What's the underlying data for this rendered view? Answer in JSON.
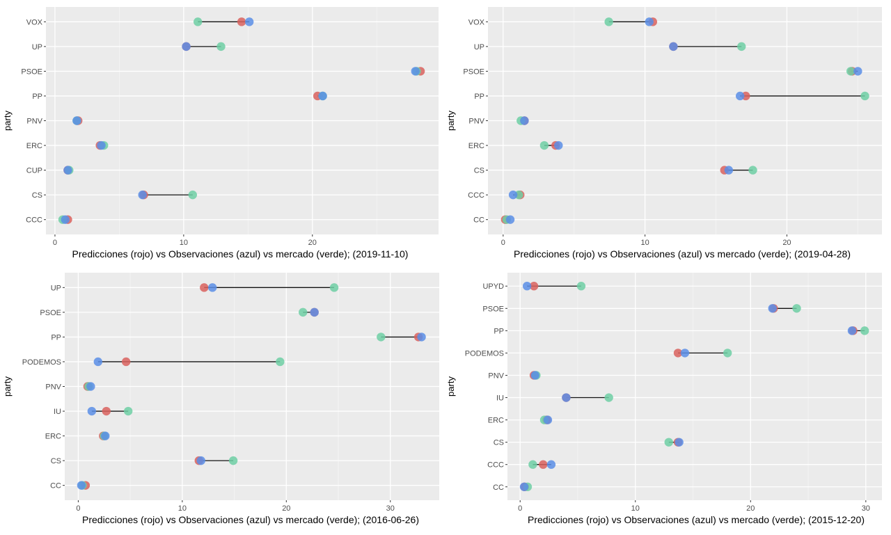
{
  "chart_data": [
    {
      "type": "dot",
      "xlabel": "Predicciones (rojo) vs  Observaciones (azul) vs mercado (verde); (2019-11-10)",
      "ylabel": "party",
      "xlim": [
        -0.7,
        29.8
      ],
      "xticks": [
        0,
        10,
        20
      ],
      "grid": true,
      "categories": [
        "VOX",
        "UP",
        "PSOE",
        "PP",
        "PNV",
        "ERC",
        "CUP",
        "CS",
        "CCC"
      ],
      "series": [
        {
          "color": "#d9625e",
          "values": [
            14.5,
            10.2,
            28.4,
            20.4,
            1.8,
            3.5,
            1.0,
            6.9,
            1.0
          ]
        },
        {
          "color": "#6fcfa5",
          "values": [
            11.1,
            12.9,
            28.1,
            20.8,
            1.7,
            3.8,
            1.1,
            10.7,
            0.6
          ]
        },
        {
          "color": "#5a8ee6",
          "values": [
            15.1,
            10.2,
            28.0,
            20.8,
            1.7,
            3.6,
            1.0,
            6.8,
            0.8
          ]
        }
      ]
    },
    {
      "type": "dot",
      "xlabel": "Predicciones (rojo) vs  Observaciones (azul) vs mercado (verde); (2019-04-28)",
      "ylabel": "party",
      "xlim": [
        -1.07,
        26.7
      ],
      "xticks": [
        0,
        10,
        20
      ],
      "grid": true,
      "categories": [
        "VOX",
        "UP",
        "PSOE",
        "PP",
        "PNV",
        "ERC",
        "CS",
        "CCC",
        "CC"
      ],
      "series": [
        {
          "color": "#d9625e",
          "values": [
            10.55,
            12.0,
            24.6,
            17.1,
            1.5,
            3.7,
            15.6,
            1.2,
            0.15
          ]
        },
        {
          "color": "#6fcfa5",
          "values": [
            7.45,
            16.8,
            24.5,
            25.5,
            1.25,
            2.9,
            17.6,
            1.1,
            0.25
          ]
        },
        {
          "color": "#5a8ee6",
          "values": [
            10.3,
            12.0,
            25.0,
            16.7,
            1.5,
            3.9,
            15.9,
            0.7,
            0.5
          ]
        }
      ]
    },
    {
      "type": "dot",
      "xlabel": "Predicciones (rojo) vs  Observaciones (azul) vs mercado (verde); (2016-06-26)",
      "ylabel": "party",
      "xlim": [
        -1.3,
        34.7
      ],
      "xticks": [
        0,
        10,
        20,
        30
      ],
      "grid": true,
      "categories": [
        "UP",
        "PSOE",
        "PP",
        "PODEMOS",
        "PNV",
        "IU",
        "ERC",
        "CS",
        "CC"
      ],
      "series": [
        {
          "color": "#d9625e",
          "values": [
            12.1,
            22.7,
            32.7,
            4.6,
            0.9,
            2.7,
            2.4,
            11.6,
            0.7
          ]
        },
        {
          "color": "#6fcfa5",
          "values": [
            24.6,
            21.6,
            29.1,
            19.4,
            1.0,
            4.8,
            2.5,
            14.9,
            0.4
          ]
        },
        {
          "color": "#5a8ee6",
          "values": [
            12.9,
            22.7,
            33.0,
            1.9,
            1.2,
            1.3,
            2.6,
            11.8,
            0.3
          ]
        }
      ]
    },
    {
      "type": "dot",
      "xlabel": "Predicciones (rojo) vs  Observaciones (azul) vs mercado (verde); (2015-12-20)",
      "ylabel": "party",
      "xlim": [
        -1.1,
        31.4
      ],
      "xticks": [
        0,
        10,
        20,
        30
      ],
      "grid": true,
      "categories": [
        "UPYD",
        "PSOE",
        "PP",
        "PODEMOS",
        "PNV",
        "IU",
        "ERC",
        "CS",
        "CCC",
        "CC"
      ],
      "series": [
        {
          "color": "#d9625e",
          "values": [
            1.2,
            22.0,
            28.9,
            13.7,
            1.2,
            4.0,
            2.3,
            13.7,
            2.0,
            0.4
          ]
        },
        {
          "color": "#6fcfa5",
          "values": [
            5.3,
            24.0,
            29.9,
            18.0,
            1.4,
            7.7,
            2.1,
            12.9,
            1.1,
            0.65
          ]
        },
        {
          "color": "#5a8ee6",
          "values": [
            0.6,
            21.9,
            28.8,
            14.3,
            1.3,
            4.0,
            2.4,
            13.8,
            2.7,
            0.35
          ]
        }
      ]
    }
  ]
}
